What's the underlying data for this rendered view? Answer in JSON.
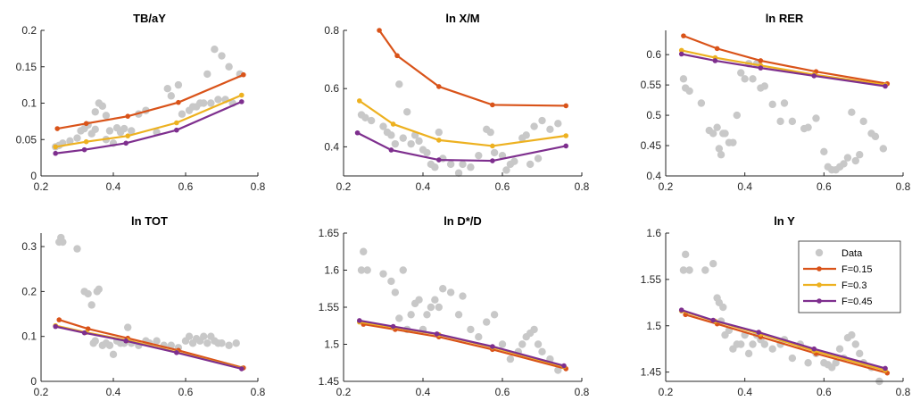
{
  "colors": {
    "data": "#c8c8c8",
    "F=0.15": "#d95319",
    "F=0.3": "#edb120",
    "F=0.45": "#7e2f8e",
    "axis": "#262626"
  },
  "chart_data": [
    {
      "type": "scatter+line",
      "title": "TB/aY",
      "xlim": [
        0.2,
        0.8
      ],
      "ylim": [
        0,
        0.2
      ],
      "xticks": [
        "0.2",
        "0.4",
        "0.6",
        "0.8"
      ],
      "yticks": [
        "0",
        "0.05",
        "0.1",
        "0.15",
        "0.2"
      ],
      "xticks_v": [
        0.2,
        0.4,
        0.6,
        0.8
      ],
      "yticks_v": [
        0,
        0.05,
        0.1,
        0.15,
        0.2
      ],
      "series": [
        {
          "name": "F=0.15",
          "x": [
            0.245,
            0.325,
            0.44,
            0.58,
            0.76
          ],
          "y": [
            0.065,
            0.072,
            0.082,
            0.101,
            0.139
          ]
        },
        {
          "name": "F=0.3",
          "x": [
            0.24,
            0.325,
            0.44,
            0.575,
            0.755
          ],
          "y": [
            0.04,
            0.047,
            0.055,
            0.073,
            0.111
          ]
        },
        {
          "name": "F=0.45",
          "x": [
            0.24,
            0.32,
            0.435,
            0.575,
            0.755
          ],
          "y": [
            0.031,
            0.036,
            0.045,
            0.063,
            0.102
          ]
        }
      ],
      "scatter": {
        "name": "Data",
        "x": [
          0.24,
          0.25,
          0.26,
          0.28,
          0.3,
          0.31,
          0.32,
          0.33,
          0.34,
          0.35,
          0.35,
          0.36,
          0.37,
          0.38,
          0.38,
          0.39,
          0.4,
          0.41,
          0.42,
          0.43,
          0.45,
          0.47,
          0.49,
          0.52,
          0.55,
          0.56,
          0.58,
          0.59,
          0.61,
          0.62,
          0.63,
          0.64,
          0.65,
          0.66,
          0.67,
          0.68,
          0.69,
          0.7,
          0.71,
          0.72,
          0.73,
          0.75
        ],
        "y": [
          0.04,
          0.042,
          0.045,
          0.048,
          0.052,
          0.062,
          0.065,
          0.07,
          0.058,
          0.088,
          0.064,
          0.1,
          0.096,
          0.083,
          0.05,
          0.062,
          0.045,
          0.066,
          0.06,
          0.065,
          0.062,
          0.085,
          0.09,
          0.06,
          0.12,
          0.11,
          0.125,
          0.085,
          0.09,
          0.095,
          0.095,
          0.1,
          0.1,
          0.14,
          0.1,
          0.174,
          0.105,
          0.165,
          0.105,
          0.15,
          0.1,
          0.14
        ]
      }
    },
    {
      "type": "scatter+line",
      "title": "ln X/M",
      "xlim": [
        0.2,
        0.8
      ],
      "ylim": [
        0.3,
        0.8
      ],
      "xticks": [
        "0.2",
        "0.4",
        "0.6",
        "0.8"
      ],
      "yticks": [
        "0.4",
        "0.6",
        "0.8"
      ],
      "xticks_v": [
        0.2,
        0.4,
        0.6,
        0.8
      ],
      "yticks_v": [
        0.4,
        0.6,
        0.8
      ],
      "series": [
        {
          "name": "F=0.15",
          "x": [
            0.29,
            0.335,
            0.44,
            0.575,
            0.76
          ],
          "y": [
            0.8,
            0.713,
            0.607,
            0.544,
            0.541
          ]
        },
        {
          "name": "F=0.3",
          "x": [
            0.24,
            0.325,
            0.44,
            0.575,
            0.76
          ],
          "y": [
            0.558,
            0.478,
            0.423,
            0.403,
            0.438
          ]
        },
        {
          "name": "F=0.45",
          "x": [
            0.235,
            0.32,
            0.44,
            0.575,
            0.76
          ],
          "y": [
            0.448,
            0.389,
            0.355,
            0.352,
            0.403
          ]
        }
      ],
      "scatter": {
        "name": "Data",
        "x": [
          0.245,
          0.255,
          0.27,
          0.3,
          0.31,
          0.32,
          0.33,
          0.34,
          0.35,
          0.36,
          0.37,
          0.38,
          0.39,
          0.4,
          0.41,
          0.42,
          0.43,
          0.44,
          0.45,
          0.47,
          0.49,
          0.5,
          0.52,
          0.54,
          0.56,
          0.57,
          0.58,
          0.6,
          0.61,
          0.62,
          0.63,
          0.65,
          0.66,
          0.67,
          0.68,
          0.69,
          0.7,
          0.72,
          0.74
        ],
        "y": [
          0.51,
          0.5,
          0.49,
          0.47,
          0.45,
          0.44,
          0.41,
          0.615,
          0.43,
          0.52,
          0.41,
          0.44,
          0.42,
          0.39,
          0.38,
          0.34,
          0.33,
          0.45,
          0.36,
          0.34,
          0.31,
          0.34,
          0.33,
          0.37,
          0.46,
          0.45,
          0.38,
          0.37,
          0.32,
          0.34,
          0.35,
          0.43,
          0.44,
          0.34,
          0.47,
          0.36,
          0.49,
          0.46,
          0.48
        ]
      }
    },
    {
      "type": "scatter+line",
      "title": "ln RER",
      "xlim": [
        0.2,
        0.8
      ],
      "ylim": [
        0.4,
        0.64
      ],
      "xticks": [
        "0.2",
        "0.4",
        "0.6",
        "0.8"
      ],
      "yticks": [
        "0.4",
        "0.45",
        "0.5",
        "0.55",
        "0.6"
      ],
      "xticks_v": [
        0.2,
        0.4,
        0.6,
        0.8
      ],
      "yticks_v": [
        0.4,
        0.45,
        0.5,
        0.55,
        0.6
      ],
      "series": [
        {
          "name": "F=0.15",
          "x": [
            0.245,
            0.33,
            0.44,
            0.58,
            0.76
          ],
          "y": [
            0.631,
            0.61,
            0.59,
            0.572,
            0.552
          ]
        },
        {
          "name": "F=0.3",
          "x": [
            0.24,
            0.325,
            0.44,
            0.575,
            0.755
          ],
          "y": [
            0.607,
            0.595,
            0.582,
            0.567,
            0.55
          ]
        },
        {
          "name": "F=0.45",
          "x": [
            0.24,
            0.325,
            0.44,
            0.575,
            0.755
          ],
          "y": [
            0.601,
            0.59,
            0.578,
            0.565,
            0.548
          ]
        }
      ],
      "scatter": {
        "name": "Data",
        "x": [
          0.245,
          0.25,
          0.26,
          0.29,
          0.31,
          0.32,
          0.33,
          0.335,
          0.34,
          0.345,
          0.35,
          0.36,
          0.37,
          0.38,
          0.39,
          0.4,
          0.41,
          0.42,
          0.43,
          0.44,
          0.45,
          0.47,
          0.49,
          0.5,
          0.52,
          0.55,
          0.56,
          0.58,
          0.6,
          0.61,
          0.62,
          0.63,
          0.64,
          0.65,
          0.66,
          0.67,
          0.68,
          0.69,
          0.7,
          0.72,
          0.73,
          0.75
        ],
        "y": [
          0.56,
          0.545,
          0.54,
          0.52,
          0.475,
          0.47,
          0.48,
          0.445,
          0.435,
          0.47,
          0.47,
          0.455,
          0.455,
          0.5,
          0.57,
          0.56,
          0.585,
          0.56,
          0.585,
          0.545,
          0.548,
          0.518,
          0.49,
          0.52,
          0.49,
          0.478,
          0.48,
          0.495,
          0.44,
          0.415,
          0.41,
          0.41,
          0.415,
          0.42,
          0.43,
          0.505,
          0.425,
          0.435,
          0.49,
          0.47,
          0.465,
          0.445
        ]
      }
    },
    {
      "type": "scatter+line",
      "title": "ln TOT",
      "xlim": [
        0.2,
        0.8
      ],
      "ylim": [
        0,
        0.33
      ],
      "xticks": [
        "0.2",
        "0.4",
        "0.6",
        "0.8"
      ],
      "yticks": [
        "0",
        "0.1",
        "0.2",
        "0.3"
      ],
      "xticks_v": [
        0.2,
        0.4,
        0.6,
        0.8
      ],
      "yticks_v": [
        0,
        0.1,
        0.2,
        0.3
      ],
      "series": [
        {
          "name": "F=0.15",
          "x": [
            0.25,
            0.33,
            0.44,
            0.58,
            0.76
          ],
          "y": [
            0.137,
            0.117,
            0.096,
            0.069,
            0.03
          ]
        },
        {
          "name": "F=0.3",
          "x": [
            0.24,
            0.325,
            0.44,
            0.575,
            0.755
          ],
          "y": [
            0.124,
            0.109,
            0.091,
            0.065,
            0.029
          ]
        },
        {
          "name": "F=0.45",
          "x": [
            0.24,
            0.32,
            0.435,
            0.575,
            0.755
          ],
          "y": [
            0.122,
            0.108,
            0.09,
            0.064,
            0.028
          ]
        }
      ],
      "scatter": {
        "name": "Data",
        "x": [
          0.25,
          0.255,
          0.26,
          0.3,
          0.32,
          0.33,
          0.34,
          0.345,
          0.35,
          0.355,
          0.36,
          0.37,
          0.38,
          0.39,
          0.4,
          0.41,
          0.42,
          0.43,
          0.44,
          0.45,
          0.47,
          0.49,
          0.5,
          0.52,
          0.54,
          0.56,
          0.58,
          0.6,
          0.61,
          0.62,
          0.63,
          0.64,
          0.65,
          0.66,
          0.67,
          0.68,
          0.69,
          0.7,
          0.72,
          0.74
        ],
        "y": [
          0.31,
          0.32,
          0.31,
          0.295,
          0.2,
          0.195,
          0.17,
          0.085,
          0.09,
          0.2,
          0.205,
          0.08,
          0.085,
          0.08,
          0.06,
          0.09,
          0.085,
          0.085,
          0.12,
          0.085,
          0.08,
          0.09,
          0.085,
          0.09,
          0.08,
          0.08,
          0.075,
          0.09,
          0.1,
          0.085,
          0.095,
          0.09,
          0.1,
          0.085,
          0.1,
          0.09,
          0.085,
          0.085,
          0.08,
          0.085
        ]
      }
    },
    {
      "type": "scatter+line",
      "title": "ln D*/D",
      "xlim": [
        0.2,
        0.8
      ],
      "ylim": [
        1.45,
        1.65
      ],
      "xticks": [
        "0.2",
        "0.4",
        "0.6",
        "0.8"
      ],
      "yticks": [
        "1.45",
        "1.5",
        "1.55",
        "1.6",
        "1.65"
      ],
      "xticks_v": [
        0.2,
        0.4,
        0.6,
        0.8
      ],
      "yticks_v": [
        1.45,
        1.5,
        1.55,
        1.6,
        1.65
      ],
      "series": [
        {
          "name": "F=0.15",
          "x": [
            0.25,
            0.33,
            0.44,
            0.575,
            0.76
          ],
          "y": [
            1.527,
            1.52,
            1.51,
            1.493,
            1.467
          ]
        },
        {
          "name": "F=0.3",
          "x": [
            0.24,
            0.325,
            0.44,
            0.575,
            0.755
          ],
          "y": [
            1.53,
            1.523,
            1.513,
            1.496,
            1.47
          ]
        },
        {
          "name": "F=0.45",
          "x": [
            0.24,
            0.325,
            0.435,
            0.575,
            0.755
          ],
          "y": [
            1.532,
            1.524,
            1.514,
            1.497,
            1.471
          ]
        }
      ],
      "scatter": {
        "name": "Data",
        "x": [
          0.245,
          0.25,
          0.26,
          0.3,
          0.32,
          0.33,
          0.34,
          0.35,
          0.36,
          0.37,
          0.38,
          0.39,
          0.4,
          0.41,
          0.42,
          0.43,
          0.44,
          0.45,
          0.47,
          0.49,
          0.5,
          0.52,
          0.54,
          0.56,
          0.58,
          0.6,
          0.62,
          0.64,
          0.65,
          0.66,
          0.67,
          0.68,
          0.69,
          0.7,
          0.72,
          0.74
        ],
        "y": [
          1.6,
          1.625,
          1.6,
          1.595,
          1.585,
          1.57,
          1.535,
          1.6,
          1.52,
          1.54,
          1.555,
          1.56,
          1.52,
          1.54,
          1.55,
          1.56,
          1.55,
          1.575,
          1.57,
          1.54,
          1.565,
          1.52,
          1.51,
          1.53,
          1.54,
          1.5,
          1.48,
          1.49,
          1.5,
          1.51,
          1.515,
          1.52,
          1.5,
          1.49,
          1.48,
          1.465
        ]
      }
    },
    {
      "type": "scatter+line",
      "title": "ln Y",
      "xlim": [
        0.2,
        0.8
      ],
      "ylim": [
        1.44,
        1.6
      ],
      "xticks": [
        "0.2",
        "0.4",
        "0.6",
        "0.8"
      ],
      "yticks": [
        "1.45",
        "1.5",
        "1.55",
        "1.6"
      ],
      "xticks_v": [
        0.2,
        0.4,
        0.6,
        0.8
      ],
      "yticks_v": [
        1.45,
        1.5,
        1.55,
        1.6
      ],
      "series": [
        {
          "name": "F=0.15",
          "x": [
            0.25,
            0.33,
            0.44,
            0.58,
            0.76
          ],
          "y": [
            1.512,
            1.502,
            1.488,
            1.47,
            1.449
          ]
        },
        {
          "name": "F=0.3",
          "x": [
            0.24,
            0.325,
            0.44,
            0.575,
            0.755
          ],
          "y": [
            1.516,
            1.505,
            1.491,
            1.473,
            1.452
          ]
        },
        {
          "name": "F=0.45",
          "x": [
            0.24,
            0.32,
            0.435,
            0.575,
            0.755
          ],
          "y": [
            1.517,
            1.506,
            1.493,
            1.475,
            1.454
          ]
        }
      ],
      "scatter": {
        "name": "Data",
        "x": [
          0.245,
          0.25,
          0.26,
          0.3,
          0.32,
          0.33,
          0.335,
          0.34,
          0.345,
          0.35,
          0.36,
          0.37,
          0.38,
          0.39,
          0.4,
          0.41,
          0.42,
          0.43,
          0.44,
          0.45,
          0.47,
          0.49,
          0.5,
          0.52,
          0.54,
          0.56,
          0.58,
          0.6,
          0.61,
          0.62,
          0.63,
          0.64,
          0.65,
          0.66,
          0.67,
          0.68,
          0.69,
          0.7,
          0.72,
          0.74
        ],
        "y": [
          1.56,
          1.577,
          1.56,
          1.56,
          1.567,
          1.53,
          1.525,
          1.505,
          1.52,
          1.49,
          1.495,
          1.475,
          1.48,
          1.48,
          1.49,
          1.47,
          1.48,
          1.49,
          1.485,
          1.48,
          1.475,
          1.48,
          1.485,
          1.465,
          1.48,
          1.46,
          1.47,
          1.46,
          1.458,
          1.455,
          1.46,
          1.475,
          1.465,
          1.487,
          1.49,
          1.48,
          1.47,
          1.46,
          1.455,
          1.44
        ]
      },
      "legend": {
        "entries": [
          "Data",
          "F=0.15",
          "F=0.3",
          "F=0.45"
        ],
        "placement": "top-right"
      }
    }
  ]
}
